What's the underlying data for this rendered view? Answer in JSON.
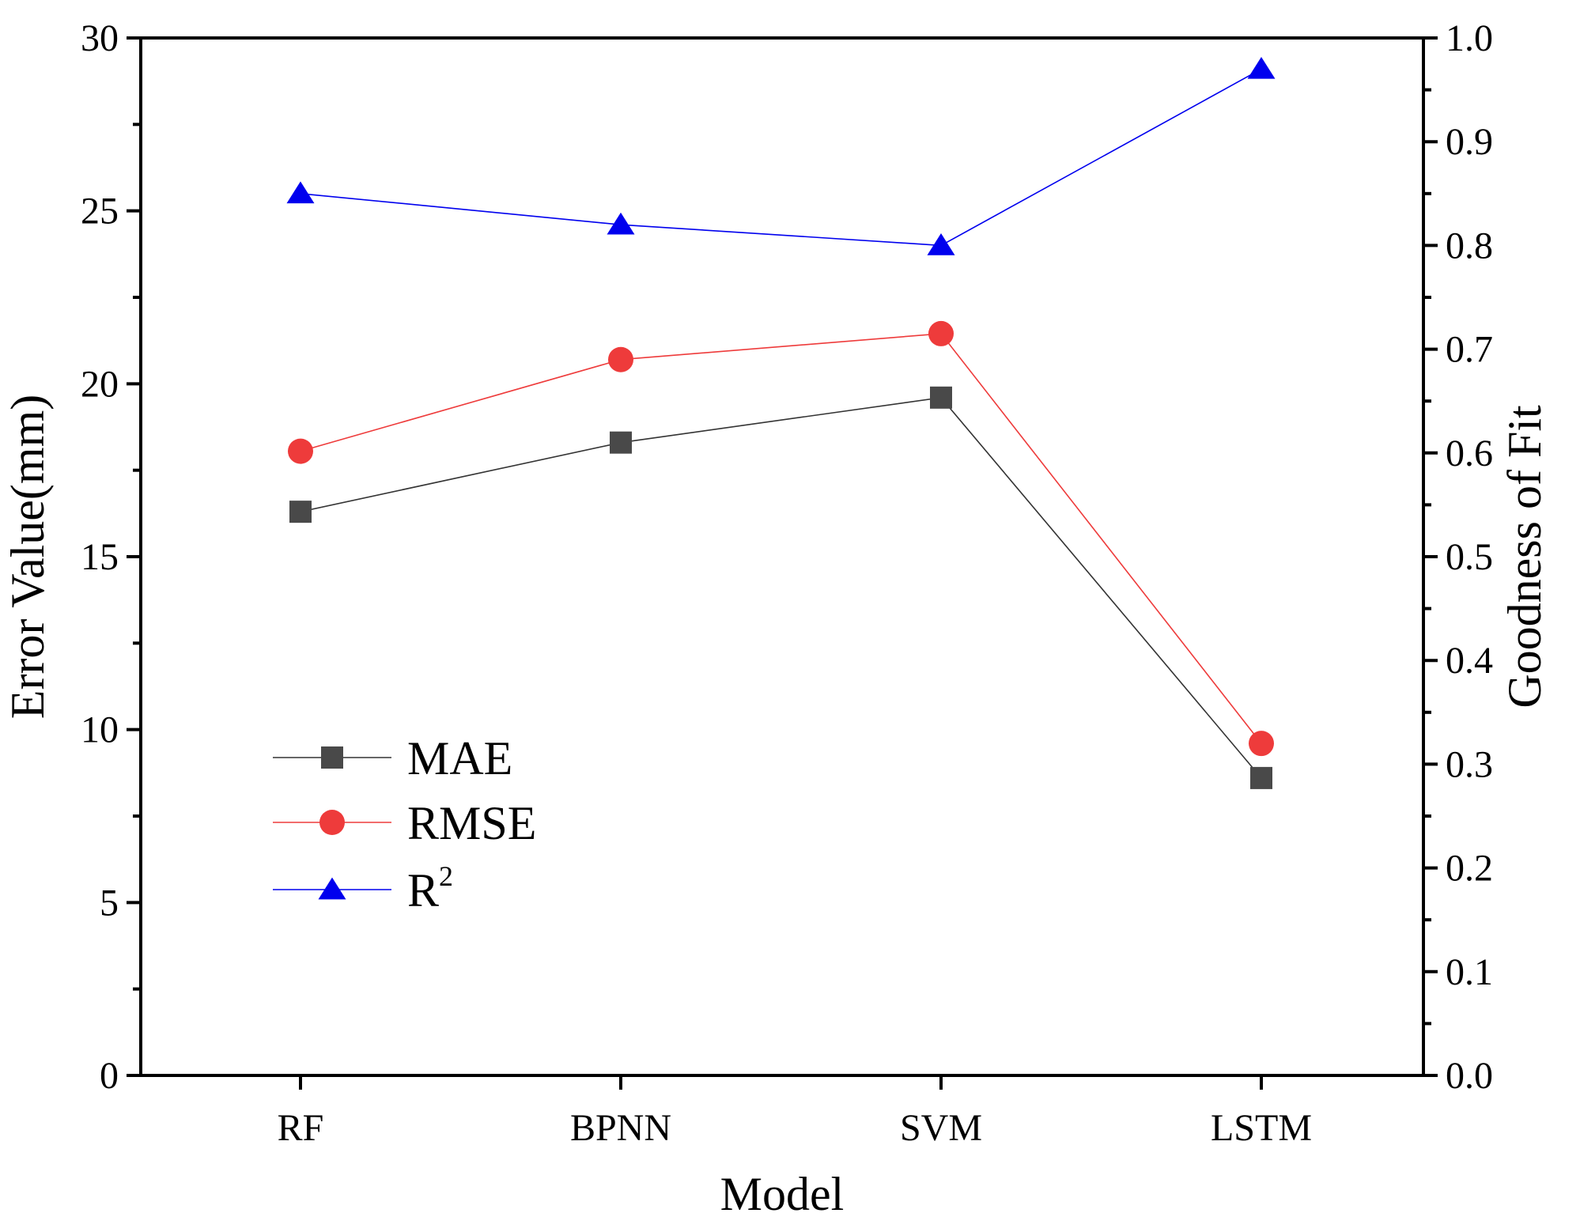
{
  "chart_data": {
    "type": "line",
    "categories": [
      "RF",
      "BPNN",
      "SVM",
      "LSTM"
    ],
    "xlabel": "Model",
    "ylabel": "Error Value(mm)",
    "y2label": "Goodness of Fit",
    "ylim": [
      0,
      30
    ],
    "y2lim": [
      0,
      1.0
    ],
    "yticks": [
      "0",
      "5",
      "10",
      "15",
      "20",
      "25",
      "30"
    ],
    "y2ticks": [
      "0.0",
      "0.1",
      "0.2",
      "0.3",
      "0.4",
      "0.5",
      "0.6",
      "0.7",
      "0.8",
      "0.9",
      "1.0"
    ],
    "legend_position": "bottom-left",
    "series": [
      {
        "name": "MAE",
        "axis": "left",
        "marker": "square",
        "color": "#494949",
        "line_color": "#333333",
        "values": [
          16.3,
          18.3,
          19.6,
          8.6
        ]
      },
      {
        "name": "RMSE",
        "axis": "left",
        "marker": "circle",
        "color": "#ee3b3b",
        "line_color": "#ee3b3b",
        "values": [
          18.05,
          20.7,
          21.45,
          9.6
        ]
      },
      {
        "name": "R",
        "superscript": "2",
        "axis": "right",
        "marker": "triangle",
        "color": "#0000ee",
        "line_color": "#0000ee",
        "values": [
          0.85,
          0.82,
          0.8,
          0.97
        ]
      }
    ]
  }
}
